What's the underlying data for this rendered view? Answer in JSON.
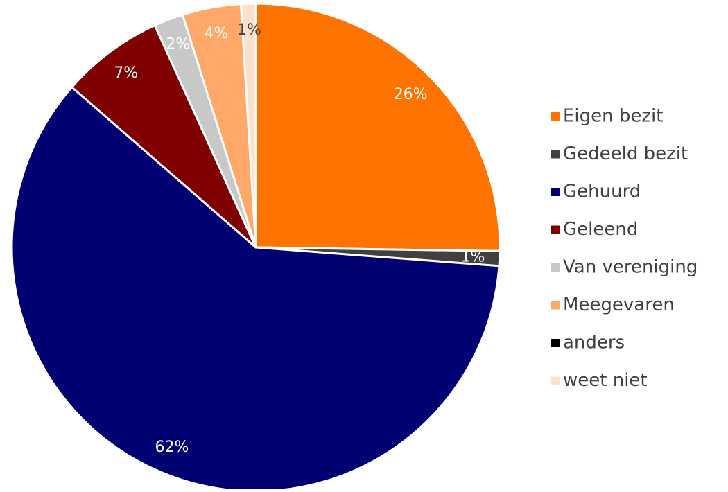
{
  "chart_data": {
    "type": "pie",
    "categories": [
      "Eigen bezit",
      "Gedeeld bezit",
      "Gehuurd",
      "Geleend",
      "Van vereniging",
      "Meegevaren",
      "anders",
      "weet niet"
    ],
    "values": [
      26,
      1,
      62,
      7,
      2,
      4,
      0,
      1
    ],
    "value_labels": [
      "26%",
      "1%",
      "62%",
      "7%",
      "2%",
      "4%",
      null,
      "1%"
    ],
    "colors": [
      "#ff7300",
      "#404040",
      "#000072",
      "#800000",
      "#c8c8c8",
      "#ffa86a",
      "#000000",
      "#fde0cc"
    ],
    "legend": "right"
  }
}
